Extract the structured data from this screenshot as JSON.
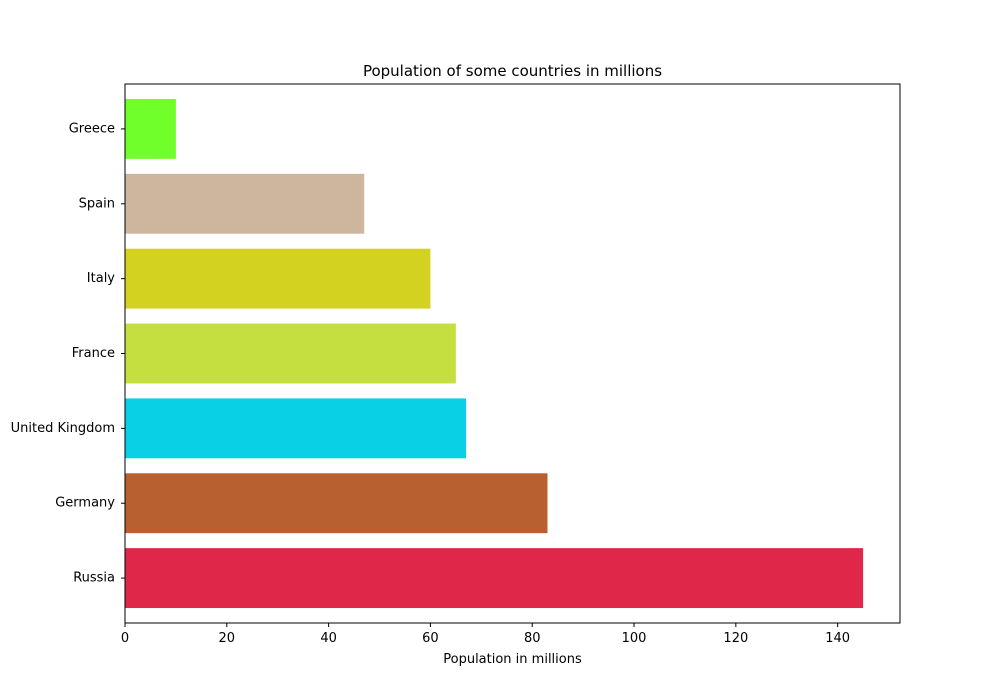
{
  "chart_data": {
    "type": "bar",
    "orientation": "horizontal",
    "title": "Population of some countries in millions",
    "xlabel": "Population in millions",
    "ylabel": "",
    "categories": [
      "Russia",
      "Germany",
      "United Kingdom",
      "France",
      "Italy",
      "Spain",
      "Greece"
    ],
    "values": [
      145,
      83,
      67,
      65,
      60,
      47,
      10
    ],
    "colors": [
      "#df274a",
      "#b86030",
      "#0ad0e6",
      "#c6df40",
      "#d4d221",
      "#cdb69d",
      "#70ff2a"
    ],
    "xlim": [
      0,
      152.25
    ],
    "xticks": [
      0,
      20,
      40,
      60,
      80,
      100,
      120,
      140
    ],
    "grid": false,
    "legend": "none"
  }
}
